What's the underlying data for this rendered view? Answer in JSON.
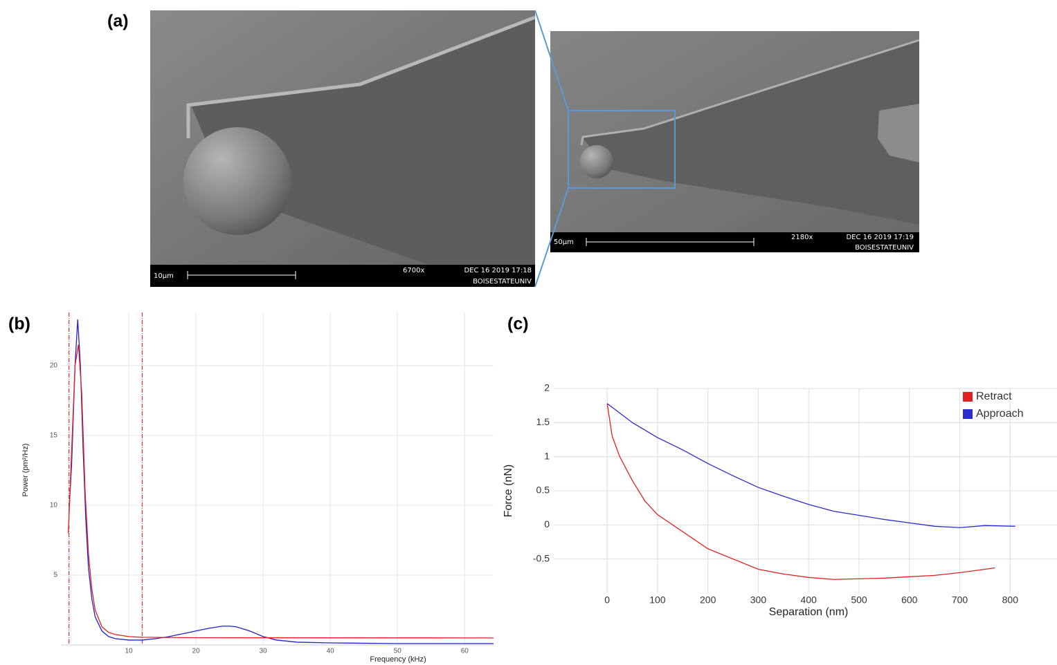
{
  "figure": {
    "panel_labels": [
      "(a)",
      "(b)",
      "(c)"
    ],
    "sem_images": [
      {
        "scale_bar": "10µm",
        "magnification": "6700x",
        "timestamp": "DEC 16 2019 17:18",
        "institution": "BOISESTATEUNIV"
      },
      {
        "scale_bar": "50µm",
        "magnification": "2180x",
        "timestamp": "DEC 16 2019 17:19",
        "institution": "BOISESTATEUNIV"
      }
    ]
  },
  "chart_data": [
    {
      "type": "line",
      "x_label": "Frequency (kHz)",
      "y_label": "Power (pm²/Hz)",
      "xlim": [
        0,
        64.3
      ],
      "ylim": [
        0,
        23.8
      ],
      "xticks": [
        10,
        20,
        30,
        40,
        50,
        60
      ],
      "yticks": [
        5,
        10,
        15,
        20
      ],
      "grid": true,
      "markers": [
        1.1,
        12.0
      ],
      "marker_color": "#e03030",
      "series": [
        {
          "color": "#1f1fd0",
          "x": [
            1.1,
            1.5,
            2.0,
            2.4,
            2.8,
            3.2,
            3.6,
            4.0,
            4.5,
            5,
            6,
            7,
            8,
            10,
            12,
            14,
            16,
            18,
            20,
            22,
            24,
            25,
            26,
            28,
            30,
            32,
            35,
            40,
            50,
            64.3
          ],
          "values": [
            9.5,
            13,
            20,
            23.3,
            20,
            14,
            9,
            5.5,
            3.3,
            2.0,
            1.0,
            0.6,
            0.45,
            0.35,
            0.35,
            0.45,
            0.6,
            0.8,
            1.0,
            1.2,
            1.35,
            1.35,
            1.3,
            1.0,
            0.6,
            0.35,
            0.2,
            0.15,
            0.1,
            0.1
          ]
        },
        {
          "color": "#e02020",
          "x": [
            1.0,
            1.5,
            2.0,
            2.5,
            3.0,
            3.5,
            4,
            4.5,
            5,
            6,
            7,
            8,
            10,
            12,
            20,
            64.3
          ],
          "values": [
            8,
            14,
            20,
            21.5,
            18,
            11,
            6.5,
            4,
            2.5,
            1.3,
            0.9,
            0.75,
            0.6,
            0.55,
            0.52,
            0.5
          ]
        }
      ]
    },
    {
      "type": "line",
      "x_label": "Separation (nm)",
      "y_label": "Force (nN)",
      "xlim": [
        -106,
        893
      ],
      "ylim": [
        -1,
        2
      ],
      "xticks": [
        0,
        100,
        200,
        300,
        400,
        500,
        600,
        700,
        800
      ],
      "yticks": [
        -0.5,
        0,
        0.5,
        1,
        1.5,
        2
      ],
      "grid": true,
      "legend": "top-right",
      "series": [
        {
          "name": "Retract",
          "color": "#e02020",
          "x": [
            0,
            10,
            25,
            50,
            75,
            100,
            150,
            200,
            250,
            300,
            350,
            400,
            450,
            500,
            550,
            600,
            650,
            700,
            750,
            770
          ],
          "values": [
            1.78,
            1.3,
            1.0,
            0.65,
            0.35,
            0.15,
            -0.1,
            -0.35,
            -0.5,
            -0.65,
            -0.72,
            -0.77,
            -0.8,
            -0.79,
            -0.78,
            -0.76,
            -0.74,
            -0.7,
            -0.65,
            -0.63
          ]
        },
        {
          "name": "Approach",
          "color": "#2a2ad0",
          "x": [
            0,
            50,
            100,
            150,
            200,
            250,
            300,
            350,
            400,
            450,
            500,
            550,
            600,
            650,
            700,
            750,
            810
          ],
          "values": [
            1.78,
            1.5,
            1.28,
            1.1,
            0.9,
            0.72,
            0.55,
            0.42,
            0.3,
            0.2,
            0.14,
            0.08,
            0.03,
            -0.02,
            -0.04,
            -0.01,
            -0.02
          ]
        }
      ]
    }
  ]
}
